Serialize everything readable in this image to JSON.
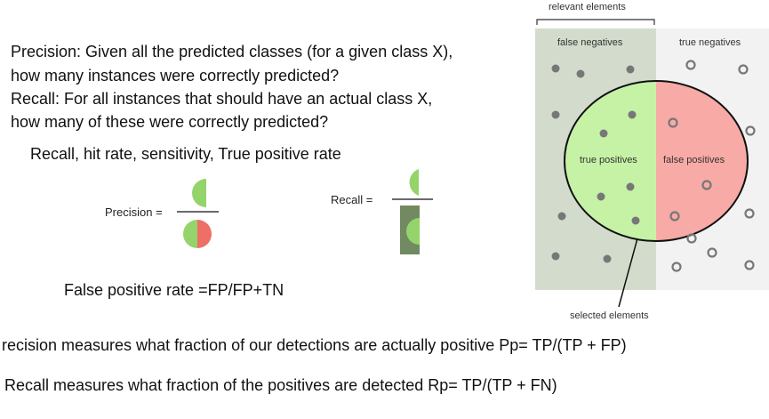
{
  "definitions": {
    "precision_line1": "Precision: Given all the predicted  classes (for a given class X),",
    "precision_line2": "how many instances were correctly predicted?",
    "recall_line1": "Recall: For all instances that should have an actual class X,",
    "recall_line2": "how many of these were correctly predicted?"
  },
  "recall_synonyms": "Recall, hit rate, sensitivity, True positive rate",
  "formula_labels": {
    "precision": "Precision =",
    "recall": "Recall ="
  },
  "false_positive_rate": "False positive rate =FP/FP+TN",
  "diagram": {
    "relevant_elements": "relevant elements",
    "false_negatives": "false negatives",
    "true_negatives": "true negatives",
    "true_positives": "true positives",
    "false_positives": "false positives",
    "selected_elements": "selected elements"
  },
  "bottom": {
    "precision_sentence": "recision measures what fraction of our detections are actually positive Pp= TP/(TP + FP)",
    "recall_sentence": "Recall measures what fraction of the positives  are detected   Rp= TP/(TP + FN)"
  },
  "colors": {
    "relevant_bg": "#d3dccc",
    "irrelevant_bg": "#f2f2f2",
    "true_positive_fill": "#c6f2a6",
    "false_positive_fill": "#f8aaa6",
    "half_green": "#94d46b",
    "half_red": "#ee6f66",
    "recall_bar": "#728a61",
    "dot_filled": "#777777",
    "dot_hollow": "#777777"
  }
}
